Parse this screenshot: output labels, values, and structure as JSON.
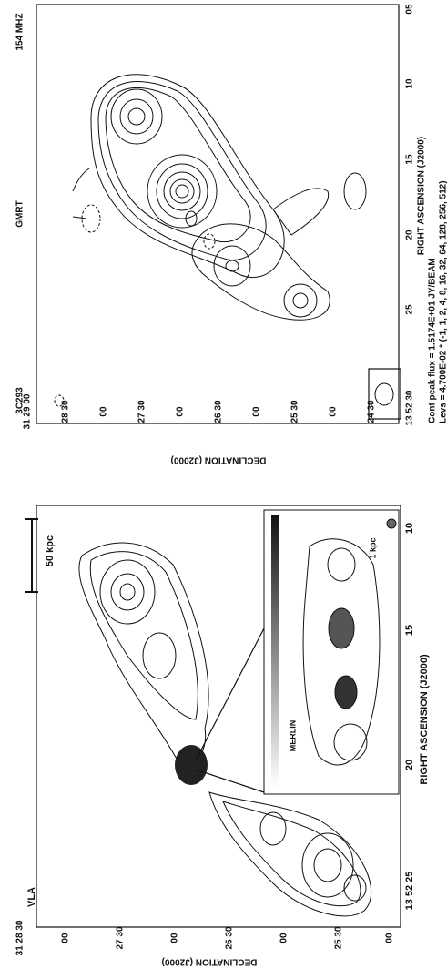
{
  "top_panel": {
    "source": "3C293",
    "telescope": "GMRT",
    "frequency": "154 MHZ",
    "x_axis": {
      "title": "RIGHT ASCENSION (J2000)",
      "ticks": [
        "05",
        "10",
        "15",
        "20",
        "25",
        "13 52 30"
      ]
    },
    "y_axis": {
      "title": "DECLINATION (J2000)",
      "ticks": [
        "31 29 00",
        "28 30",
        "00",
        "27 30",
        "00",
        "26 30",
        "00",
        "25 30",
        "00",
        "24 30"
      ]
    },
    "notes": [
      "Cont peak flux = 1.5174E+01 JY/BEAM",
      "Levs = 4.700E-02 * (-1, 1, 2, 4, 8, 16, 32, 64, 128, 256, 512)"
    ]
  },
  "bottom_panel": {
    "telescope": "VLA",
    "scale_bar": "50 kpc",
    "inset_telescope": "MERLIN",
    "inset_scale_bar": "1 kpc",
    "x_axis": {
      "title": "RIGHT ASCENSION (J2000)",
      "ticks": [
        "13 52 25",
        "20",
        "15",
        "10"
      ]
    },
    "y_axis": {
      "title": "DECLINATION (J2000)",
      "ticks": [
        "31 28 30",
        "00",
        "27 30",
        "00",
        "26 30",
        "00",
        "25 30",
        "00"
      ]
    }
  }
}
